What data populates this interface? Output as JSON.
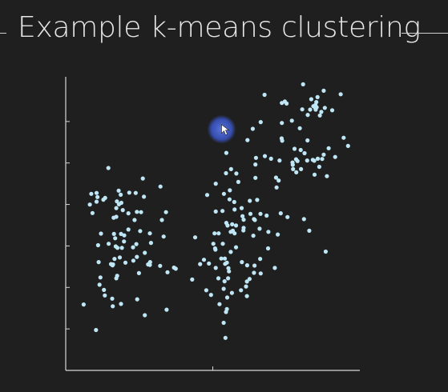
{
  "title": "Example k-means clustering",
  "colors": {
    "background": "#1f1f1f",
    "axis": "#d7d7d7",
    "point": "#bfe6f5",
    "cursor_halo": "#3a56c8",
    "text": "#e6e6e6"
  },
  "cursor": {
    "icon": "pointer-cursor-icon",
    "x": 5.3,
    "y": 8.3
  },
  "chart_data": {
    "type": "scatter",
    "title": "",
    "xlabel": "",
    "ylabel": "",
    "xlim": [
      0,
      10
    ],
    "ylim": [
      0,
      10
    ],
    "grid": false,
    "legend": "none",
    "series": [
      {
        "points": [
          [
            0.61,
            2.27
          ],
          [
            1.03,
            1.39
          ],
          [
            1.45,
            6.97
          ],
          [
            2.62,
            6.61
          ],
          [
            3.22,
            6.33
          ],
          [
            1.28,
            5.88
          ],
          [
            2.86,
            4.72
          ],
          [
            4.3,
            3.13
          ],
          [
            1.89,
            5.77
          ],
          [
            1.72,
            5.29
          ],
          [
            1.1,
            4.31
          ],
          [
            1.33,
            2.58
          ],
          [
            1.59,
            3.62
          ],
          [
            2.87,
            3.73
          ],
          [
            2.69,
            1.9
          ],
          [
            1.7,
            4.27
          ],
          [
            3.41,
            5.45
          ],
          [
            2.56,
            5.45
          ],
          [
            1.46,
            4.36
          ],
          [
            3.27,
            5.18
          ],
          [
            3.68,
            3.54
          ],
          [
            0.91,
            5.42
          ],
          [
            2.8,
            3.65
          ],
          [
            1.18,
            3.2
          ],
          [
            1.91,
            4.22
          ],
          [
            3.33,
            4.61
          ],
          [
            2.13,
            5.41
          ],
          [
            0.82,
            5.71
          ],
          [
            2.13,
            4.85
          ],
          [
            2.3,
            3.78
          ],
          [
            1.15,
            2.95
          ],
          [
            2.42,
            5.46
          ],
          [
            2.43,
            2.45
          ],
          [
            2.66,
            5.98
          ],
          [
            1.99,
            4.65
          ],
          [
            1.08,
            5.97
          ],
          [
            0.87,
            6.08
          ],
          [
            1.94,
            5.52
          ],
          [
            2.86,
            3.63
          ],
          [
            1.3,
            2.77
          ],
          [
            1.72,
            5.59
          ],
          [
            1.84,
            3.89
          ],
          [
            1.81,
            5.72
          ],
          [
            2.34,
            5.18
          ],
          [
            1.61,
            3.65
          ],
          [
            2.4,
            4.35
          ],
          [
            1.87,
            6.05
          ],
          [
            2.38,
            6.11
          ],
          [
            1.05,
            5.81
          ],
          [
            2.49,
            3.35
          ],
          [
            1.12,
            3.73
          ],
          [
            1.54,
            3.66
          ],
          [
            3.46,
            3.38
          ],
          [
            1.05,
            6.11
          ],
          [
            2.16,
            6.12
          ],
          [
            3.43,
            2.09
          ],
          [
            3.74,
            3.5
          ],
          [
            1.72,
            3.17
          ],
          [
            1.2,
            4.71
          ],
          [
            2.03,
            3.71
          ],
          [
            2.42,
            3.91
          ],
          [
            1.68,
            4.55
          ],
          [
            2.69,
            4.05
          ],
          [
            1.58,
            2.47
          ],
          [
            1.8,
            6.19
          ],
          [
            1.64,
            4.7
          ],
          [
            1.74,
            5.82
          ],
          [
            1.66,
            3.84
          ],
          [
            1.6,
            2.21
          ],
          [
            1.88,
            4.7
          ],
          [
            1.75,
            3.26
          ],
          [
            2.9,
            4.39
          ],
          [
            3.21,
            3.6
          ],
          [
            2.29,
            4.24
          ],
          [
            1.34,
            5.94
          ],
          [
            1.98,
            4.44
          ],
          [
            1.63,
            5.26
          ],
          [
            1.88,
            2.29
          ],
          [
            1.76,
            4.22
          ],
          [
            2.53,
            4.8
          ],
          [
            4.87,
            3.68
          ],
          [
            6.63,
            3.34
          ],
          [
            5.02,
            4.36
          ],
          [
            6.89,
            4.77
          ],
          [
            5.48,
            2.11
          ],
          [
            5.53,
            3.52
          ],
          [
            4.7,
            3.81
          ],
          [
            6.01,
            5.31
          ],
          [
            5.5,
            4.99
          ],
          [
            5.42,
            3.67
          ],
          [
            5.55,
            3.41
          ],
          [
            5.34,
            4.36
          ],
          [
            6.45,
            6.63
          ],
          [
            5.46,
            7.49
          ],
          [
            4.4,
            4.58
          ],
          [
            6.83,
            5.33
          ],
          [
            5.1,
            3.53
          ],
          [
            5.33,
            5.49
          ],
          [
            6.42,
            3.61
          ],
          [
            5.79,
            4.24
          ],
          [
            5.61,
            4.08
          ],
          [
            5.49,
            2.51
          ],
          [
            4.78,
            2.76
          ],
          [
            5.09,
            4.16
          ],
          [
            5.73,
            5.8
          ],
          [
            5.98,
            5.59
          ],
          [
            4.57,
            3.66
          ],
          [
            6.59,
            4.88
          ],
          [
            5.45,
            2.01
          ],
          [
            6.88,
            4.2
          ],
          [
            6.62,
            5.39
          ],
          [
            5.66,
            5.03
          ],
          [
            6.61,
            3.84
          ],
          [
            6.38,
            4.64
          ],
          [
            5.96,
            2.76
          ],
          [
            5.74,
            5.54
          ],
          [
            6.28,
            5.39
          ],
          [
            6.16,
            3.06
          ],
          [
            6.05,
            5.19
          ],
          [
            5.43,
            1.12
          ],
          [
            5.52,
            3.17
          ],
          [
            6.04,
            4.82
          ],
          [
            5.57,
            5.89
          ],
          [
            5.8,
            6.78
          ],
          [
            5.37,
            2.81
          ],
          [
            5.79,
            4.99
          ],
          [
            4.81,
            6.04
          ],
          [
            4.94,
            2.6
          ],
          [
            5.62,
            6.93
          ],
          [
            6.17,
            3.62
          ],
          [
            5.08,
            4.2
          ],
          [
            5.06,
            4.72
          ],
          [
            5.19,
            3.17
          ],
          [
            5.65,
            2.67
          ],
          [
            5.1,
            5.47
          ],
          [
            5.74,
            4.72
          ],
          [
            5.4,
            3.07
          ],
          [
            5.58,
            6.2
          ],
          [
            5.29,
            3.85
          ],
          [
            5.37,
            1.64
          ],
          [
            5.48,
            3.71
          ],
          [
            6.43,
            5.18
          ],
          [
            5.46,
            5.08
          ],
          [
            5.68,
            4.81
          ],
          [
            6.13,
            2.89
          ],
          [
            6.16,
            2.56
          ],
          [
            5.38,
            6.08
          ],
          [
            6.25,
            3.15
          ],
          [
            5.61,
            4.77
          ],
          [
            6.4,
            3.36
          ],
          [
            5.2,
            4.72
          ],
          [
            5.45,
            6.79
          ],
          [
            5.41,
            3.85
          ],
          [
            6.05,
            4.91
          ],
          [
            6.26,
            5.84
          ],
          [
            5.1,
            6.43
          ],
          [
            5.99,
            3.73
          ],
          [
            5.87,
            6.49
          ],
          [
            6.4,
            5.21
          ],
          [
            5.23,
            2.28
          ],
          [
            6.98,
            7.29
          ],
          [
            9.45,
            8.01
          ],
          [
            8.12,
            7.48
          ],
          [
            8.04,
            8.99
          ],
          [
            7.83,
            7.27
          ],
          [
            8.64,
            8.78
          ],
          [
            8.5,
            8.98
          ],
          [
            8.57,
            7.29
          ],
          [
            6.63,
            8.55
          ],
          [
            8.4,
            7.25
          ],
          [
            7.73,
            6.93
          ],
          [
            7.72,
            7.08
          ],
          [
            7.84,
            6.82
          ],
          [
            8.31,
            8.98
          ],
          [
            7.15,
            6.64
          ],
          [
            7.51,
            9.19
          ],
          [
            7.45,
            9.26
          ],
          [
            8.22,
            7.92
          ],
          [
            6.45,
            7.09
          ],
          [
            7.35,
            9.21
          ],
          [
            8.72,
            7.28
          ],
          [
            8.42,
            9.1
          ],
          [
            7.78,
            7.63
          ],
          [
            9.6,
            7.73
          ],
          [
            8.62,
            7.01
          ],
          [
            7.71,
            7.16
          ],
          [
            8.0,
            6.93
          ],
          [
            6.18,
            7.93
          ],
          [
            8.23,
            8.8
          ],
          [
            7.69,
            8.6
          ],
          [
            8.94,
            7.65
          ],
          [
            8.35,
            9.34
          ],
          [
            6.76,
            9.49
          ],
          [
            8.52,
            9.24
          ],
          [
            6.47,
            7.32
          ],
          [
            8.69,
            8.9
          ],
          [
            8.46,
            6.74
          ],
          [
            8.81,
            9.04
          ],
          [
            8.07,
            9.85
          ],
          [
            7.36,
            7.91
          ],
          [
            8.88,
            6.69
          ],
          [
            7.34,
            7.99
          ],
          [
            8.56,
            9.41
          ],
          [
            8.77,
            7.43
          ],
          [
            9.35,
            9.51
          ],
          [
            9.16,
            7.35
          ],
          [
            8.49,
            9.14
          ],
          [
            8.77,
            9.63
          ],
          [
            7.35,
            8.52
          ],
          [
            7.27,
            7.23
          ],
          [
            8.21,
            7.23
          ],
          [
            6.77,
            7.38
          ],
          [
            7.24,
            6.54
          ],
          [
            7.17,
            6.3
          ],
          [
            8.53,
            9.06
          ],
          [
            6.36,
            8.32
          ],
          [
            6.51,
            5.87
          ],
          [
            7.88,
            7.21
          ],
          [
            7.31,
            5.41
          ],
          [
            8.45,
            7.22
          ],
          [
            7.54,
            5.28
          ],
          [
            8.1,
            5.21
          ],
          [
            7.21,
            4.68
          ],
          [
            8.28,
            4.81
          ],
          [
            8.84,
            4.09
          ],
          [
            7.11,
            3.53
          ],
          [
            8.48,
            9.05
          ],
          [
            7.99,
            7.59
          ],
          [
            7.96,
            8.34
          ],
          [
            9.06,
            8.96
          ]
        ]
      }
    ]
  }
}
